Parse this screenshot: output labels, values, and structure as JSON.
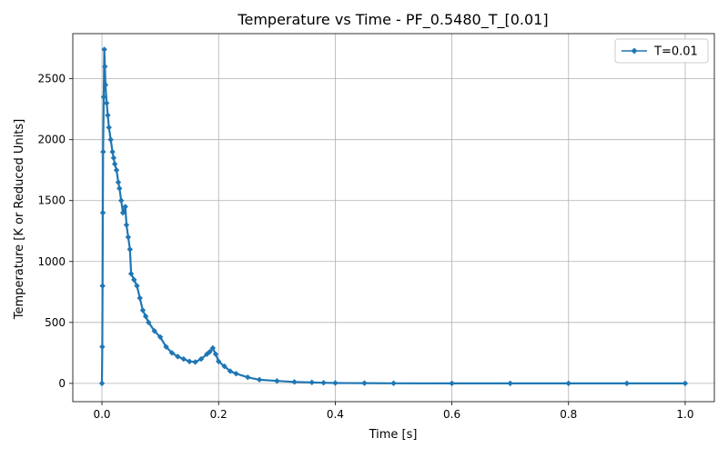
{
  "chart_data": {
    "type": "line",
    "title": "Temperature vs Time - PF_0.5480_T_[0.01]",
    "xlabel": "Time [s]",
    "ylabel": "Temperature [K or Reduced Units]",
    "xlim": [
      -0.05,
      1.05
    ],
    "ylim": [
      -150,
      2870
    ],
    "xticks": [
      0.0,
      0.2,
      0.4,
      0.6,
      0.8,
      1.0
    ],
    "xtick_labels": [
      "0.0",
      "0.2",
      "0.4",
      "0.6",
      "0.8",
      "1.0"
    ],
    "yticks": [
      0,
      500,
      1000,
      1500,
      2000,
      2500
    ],
    "ytick_labels": [
      "0",
      "500",
      "1000",
      "1500",
      "2000",
      "2500"
    ],
    "grid": true,
    "legend_position": "top-right",
    "colors": {
      "series": "#1f77b4",
      "grid": "#b0b0b0"
    },
    "series": [
      {
        "name": "T=0.01",
        "marker": "diamond",
        "x": [
          0.0,
          0.0005,
          0.001,
          0.0015,
          0.002,
          0.003,
          0.004,
          0.005,
          0.006,
          0.008,
          0.01,
          0.012,
          0.015,
          0.018,
          0.02,
          0.022,
          0.025,
          0.028,
          0.03,
          0.033,
          0.036,
          0.04,
          0.042,
          0.045,
          0.048,
          0.05,
          0.055,
          0.06,
          0.065,
          0.07,
          0.075,
          0.08,
          0.09,
          0.1,
          0.11,
          0.12,
          0.13,
          0.14,
          0.15,
          0.16,
          0.17,
          0.18,
          0.185,
          0.19,
          0.195,
          0.2,
          0.21,
          0.22,
          0.23,
          0.25,
          0.27,
          0.3,
          0.33,
          0.36,
          0.38,
          0.4,
          0.45,
          0.5,
          0.6,
          0.7,
          0.8,
          0.9,
          1.0
        ],
        "y": [
          0,
          300,
          800,
          1400,
          1900,
          2350,
          2740,
          2600,
          2450,
          2300,
          2200,
          2100,
          2000,
          1900,
          1850,
          1800,
          1750,
          1650,
          1600,
          1500,
          1400,
          1450,
          1300,
          1200,
          1100,
          900,
          850,
          800,
          700,
          600,
          550,
          500,
          430,
          380,
          300,
          250,
          220,
          200,
          180,
          175,
          200,
          240,
          260,
          290,
          240,
          180,
          140,
          100,
          80,
          50,
          30,
          20,
          12,
          8,
          5,
          3,
          2,
          1,
          0,
          0,
          0,
          0,
          0
        ]
      }
    ]
  }
}
